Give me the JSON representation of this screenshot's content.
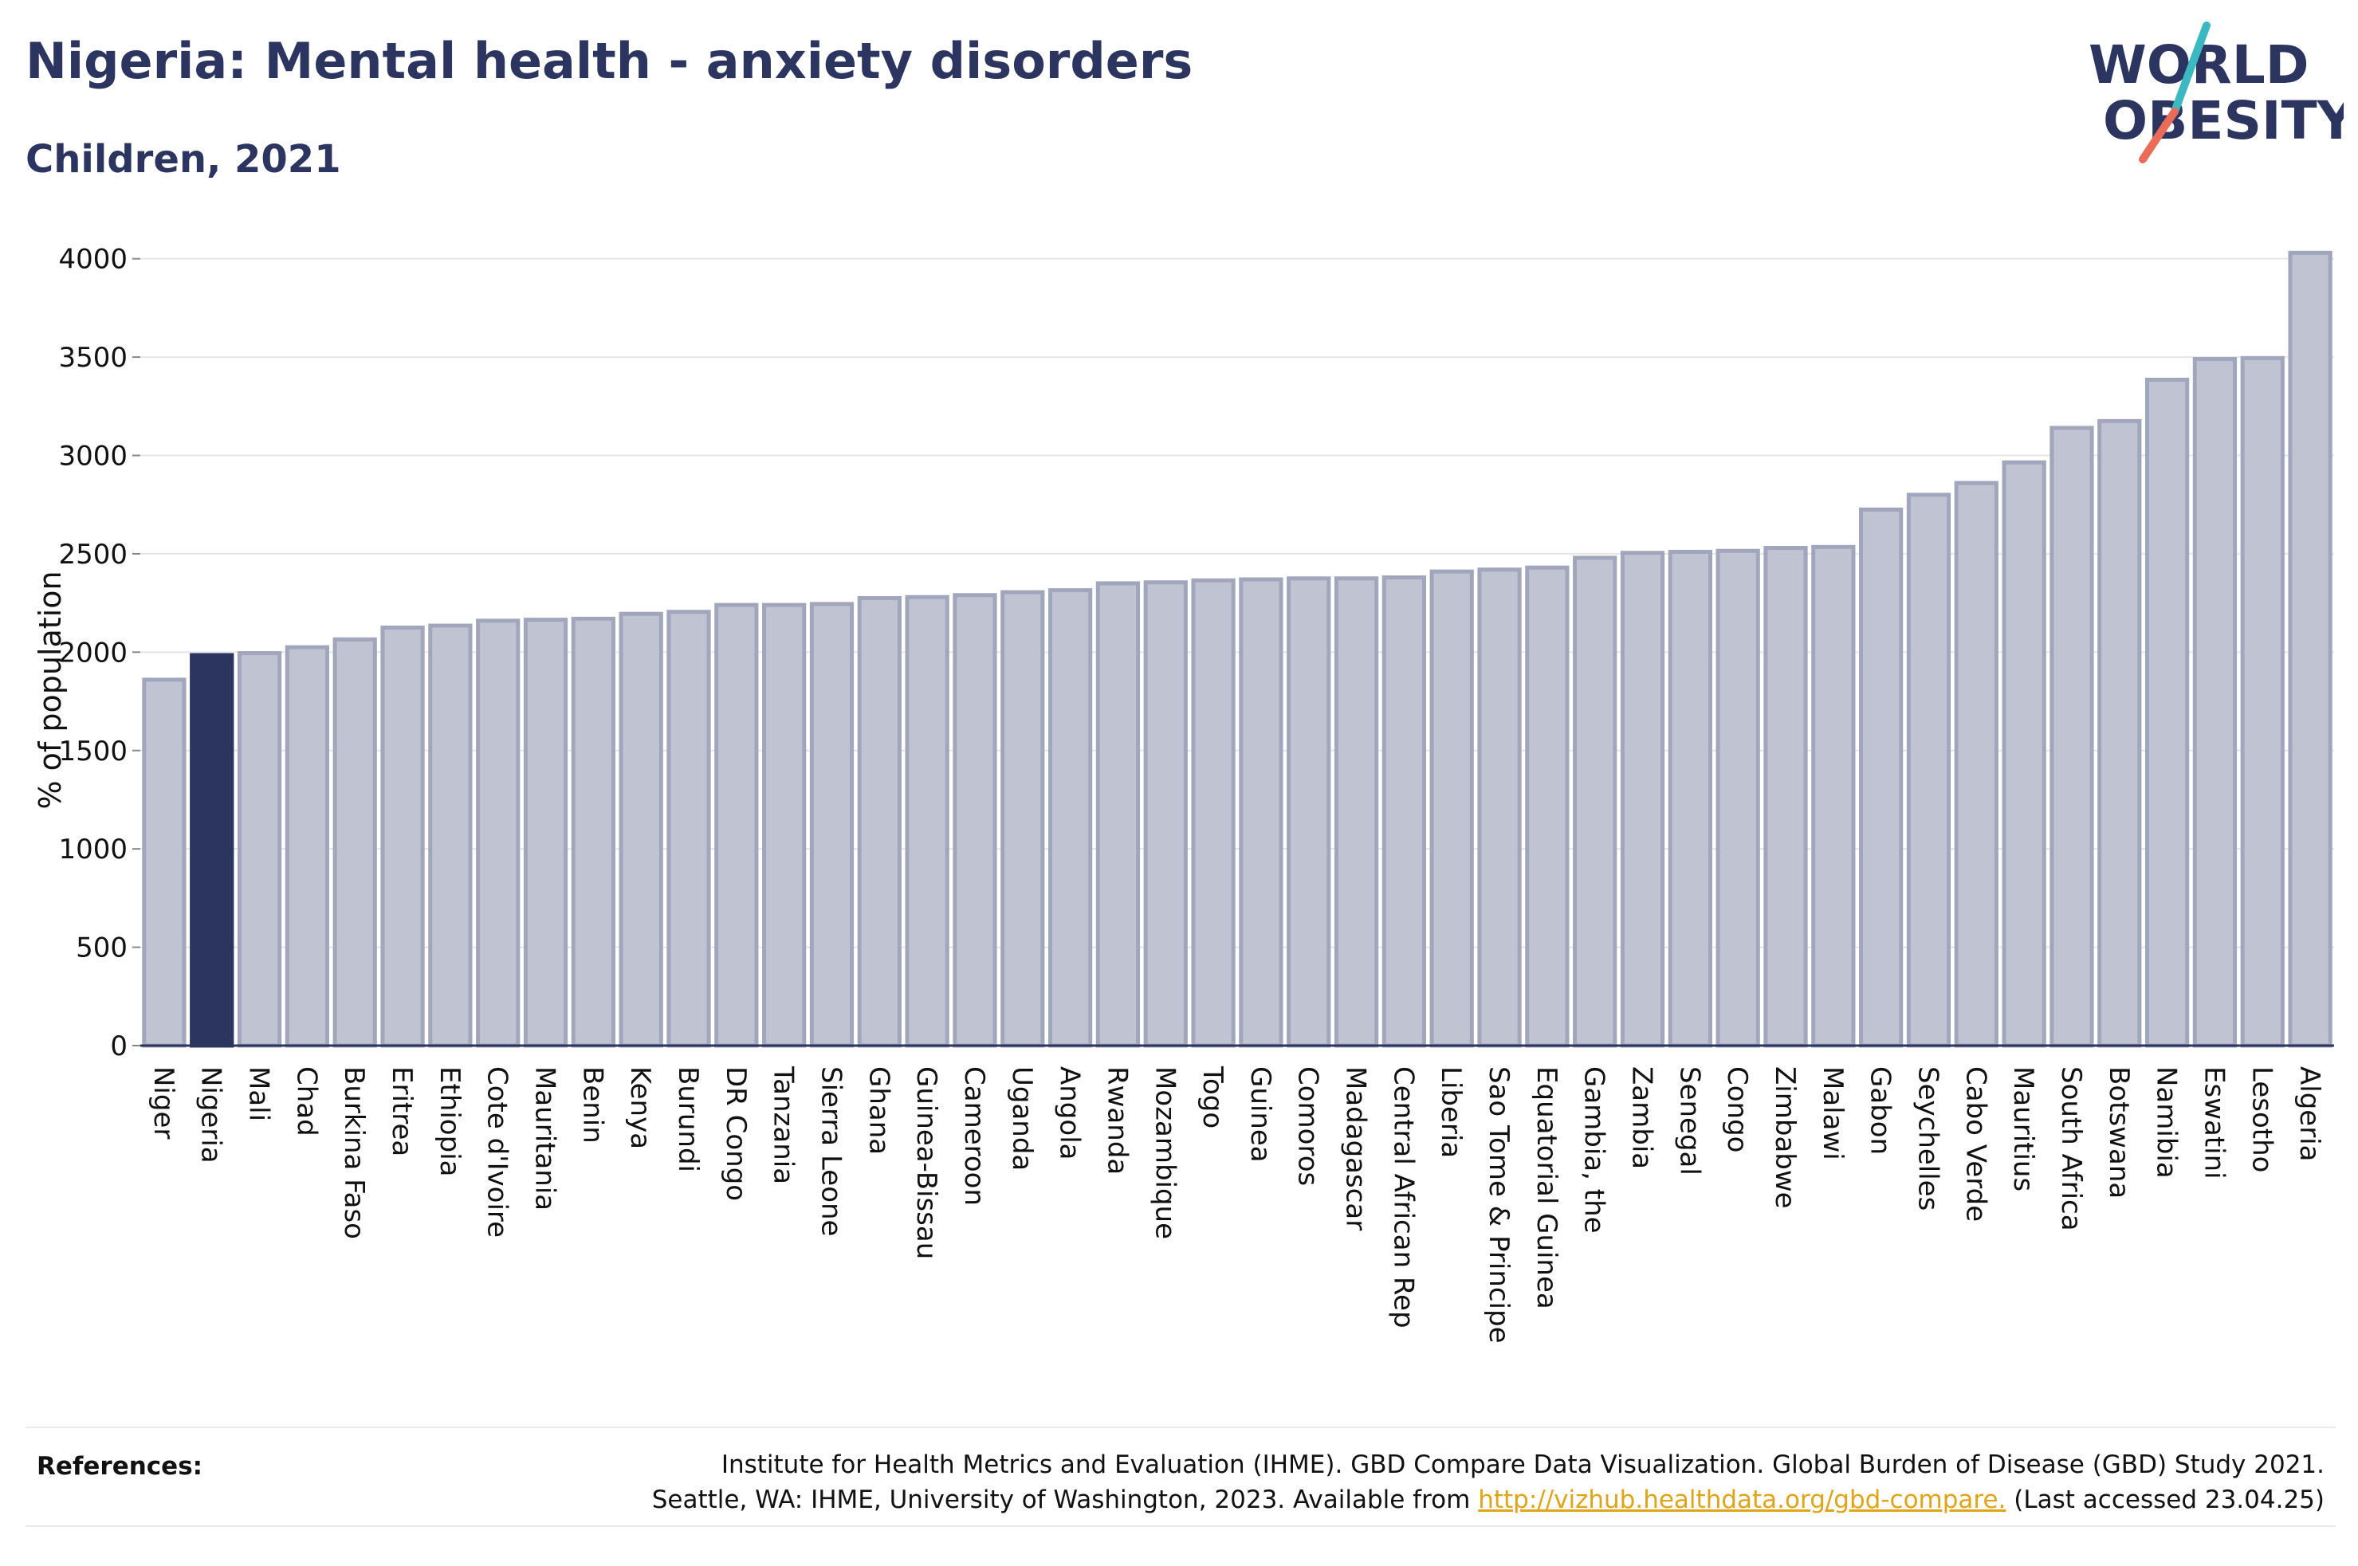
{
  "header": {
    "title": "Nigeria: Mental health - anxiety disorders",
    "subtitle": "Children, 2021"
  },
  "logo": {
    "line1": "WORLD",
    "line2": "OBESITY",
    "color_text": "#2b3560",
    "color_slash_top": "#3cb8c0",
    "color_slash_bottom": "#ea6b57"
  },
  "references": {
    "label": "References:",
    "line1": "Institute for Health Metrics and Evaluation (IHME). GBD Compare Data Visualization. Global Burden of Disease (GBD) Study 2021.",
    "line2_prefix": "Seattle, WA: IHME, University of Washington, 2023. Available from",
    "link_text": "http://vizhub.healthdata.org/gbd-compare.",
    "line2_suffix": "(Last accessed 23.04.25)"
  },
  "colors": {
    "highlight_bar": "#2b3560",
    "bar_fill": "#c0c3d2",
    "bar_stroke": "#a2a6bd",
    "grid": "#e6e6ea",
    "axis": "#2b3560"
  },
  "chart_data": {
    "type": "bar",
    "title": "Nigeria: Mental health - anxiety disorders",
    "subtitle": "Children, 2021",
    "ylabel": "% of population",
    "xlabel": "",
    "ylim": [
      0,
      4100
    ],
    "yticks": [
      0,
      500,
      1000,
      1500,
      2000,
      2500,
      3000,
      3500,
      4000
    ],
    "grid": true,
    "highlight": "Nigeria",
    "categories": [
      "Niger",
      "Nigeria",
      "Mali",
      "Chad",
      "Burkina Faso",
      "Eritrea",
      "Ethiopia",
      "Cote d'Ivoire",
      "Mauritania",
      "Benin",
      "Kenya",
      "Burundi",
      "DR Congo",
      "Tanzania",
      "Sierra Leone",
      "Ghana",
      "Guinea-Bissau",
      "Cameroon",
      "Uganda",
      "Angola",
      "Rwanda",
      "Mozambique",
      "Togo",
      "Guinea",
      "Comoros",
      "Madagascar",
      "Central African Rep",
      "Liberia",
      "Sao Tome & Principe",
      "Equatorial Guinea",
      "Gambia, the",
      "Zambia",
      "Senegal",
      "Congo",
      "Zimbabwe",
      "Malawi",
      "Gabon",
      "Seychelles",
      "Cabo Verde",
      "Mauritius",
      "South Africa",
      "Botswana",
      "Namibia",
      "Eswatini",
      "Lesotho",
      "Algeria"
    ],
    "values": [
      1860,
      1985,
      1995,
      2025,
      2065,
      2125,
      2135,
      2160,
      2165,
      2170,
      2195,
      2205,
      2240,
      2240,
      2245,
      2275,
      2280,
      2290,
      2305,
      2315,
      2350,
      2355,
      2365,
      2370,
      2375,
      2375,
      2380,
      2410,
      2420,
      2430,
      2480,
      2505,
      2510,
      2515,
      2530,
      2535,
      2725,
      2800,
      2860,
      2965,
      3140,
      3175,
      3385,
      3490,
      3495,
      4030
    ]
  }
}
